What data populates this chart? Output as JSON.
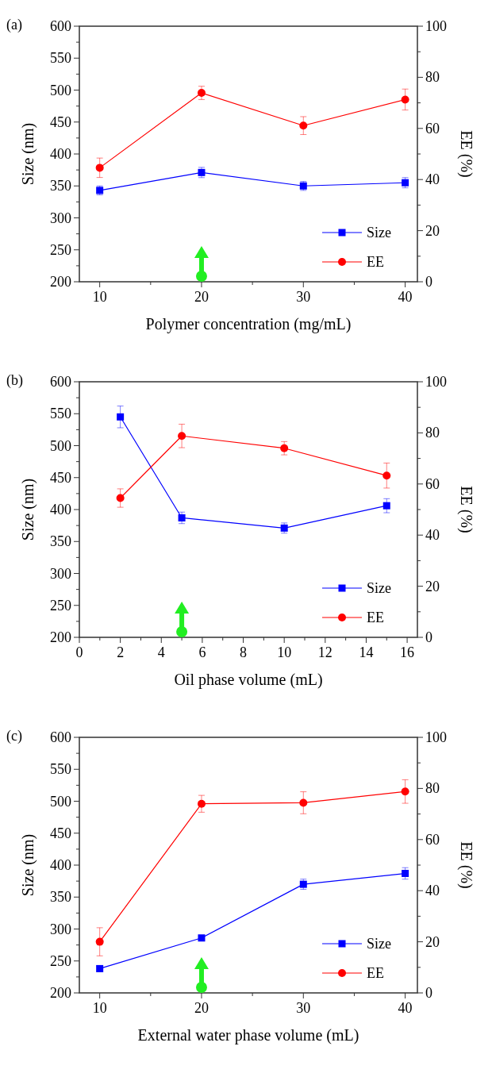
{
  "chart_data": [
    {
      "type": "line",
      "title": "(a)",
      "xlabel": "Polymer concentration (mg/mL)",
      "ylabel": "Size (nm)",
      "y2label": "EE (%)",
      "x": [
        10,
        20,
        30,
        40
      ],
      "xlim": [
        8,
        41.2
      ],
      "xticks": [
        10,
        {
          "value": 15,
          "label": null
        },
        20,
        {
          "value": 25,
          "label": null
        },
        30,
        {
          "value": 35,
          "label": null
        },
        40
      ],
      "ylim": [
        200,
        600
      ],
      "yticks": [
        200,
        {
          "value": 225,
          "label": null
        },
        250,
        {
          "value": 275,
          "label": null
        },
        300,
        {
          "value": 325,
          "label": null
        },
        350,
        {
          "value": 375,
          "label": null
        },
        400,
        {
          "value": 425,
          "label": null
        },
        450,
        {
          "value": 475,
          "label": null
        },
        500,
        {
          "value": 525,
          "label": null
        },
        550,
        {
          "value": 575,
          "label": null
        },
        600
      ],
      "y2lim": [
        0,
        100
      ],
      "y2ticks": [
        0,
        {
          "value": 10,
          "label": null
        },
        20,
        {
          "value": 30,
          "label": null
        },
        40,
        {
          "value": 50,
          "label": null
        },
        60,
        {
          "value": 70,
          "label": null
        },
        80,
        {
          "value": 90,
          "label": null
        },
        100
      ],
      "legend": "bottom right",
      "grid": false,
      "line_style": "solid",
      "series": [
        {
          "name": "Size",
          "color": "#0000ff",
          "marker": "square",
          "values": [
            343,
            371,
            350,
            355
          ],
          "errors": [
            7,
            8,
            7,
            8
          ]
        },
        {
          "name": "EE",
          "color": "#ff0000",
          "marker": "circle",
          "axis": "y2",
          "values": [
            44.6,
            73.9,
            61.1,
            71.3
          ],
          "errors": [
            3.8,
            2.6,
            3.5,
            4.1
          ]
        }
      ]
    },
    {
      "type": "line",
      "title": "(b)",
      "xlabel": "Oil phase volume (mL)",
      "ylabel": "Size (nm)",
      "y2label": "EE (%)",
      "x": [
        2,
        5,
        10,
        15
      ],
      "xlim": [
        0,
        16.5
      ],
      "xticks": [
        0,
        {
          "value": 1,
          "label": null
        },
        2,
        {
          "value": 3,
          "label": null
        },
        4,
        {
          "value": 5,
          "label": null
        },
        6,
        {
          "value": 7,
          "label": null
        },
        8,
        {
          "value": 9,
          "label": null
        },
        10,
        {
          "value": 11,
          "label": null
        },
        12,
        {
          "value": 13,
          "label": null
        },
        14,
        {
          "value": 15,
          "label": null
        },
        16
      ],
      "ylim": [
        200,
        600
      ],
      "yticks": [
        200,
        {
          "value": 225,
          "label": null
        },
        250,
        {
          "value": 275,
          "label": null
        },
        300,
        {
          "value": 325,
          "label": null
        },
        350,
        {
          "value": 375,
          "label": null
        },
        400,
        {
          "value": 425,
          "label": null
        },
        450,
        {
          "value": 475,
          "label": null
        },
        500,
        {
          "value": 525,
          "label": null
        },
        550,
        {
          "value": 575,
          "label": null
        },
        600
      ],
      "y2lim": [
        0,
        100
      ],
      "y2ticks": [
        0,
        {
          "value": 10,
          "label": null
        },
        20,
        {
          "value": 30,
          "label": null
        },
        40,
        {
          "value": 50,
          "label": null
        },
        60,
        {
          "value": 70,
          "label": null
        },
        80,
        {
          "value": 90,
          "label": null
        },
        100
      ],
      "legend": "bottom right",
      "grid": false,
      "line_style": "solid",
      "series": [
        {
          "name": "Size",
          "color": "#0000ff",
          "marker": "square",
          "values": [
            545,
            387,
            371,
            406
          ],
          "errors": [
            17,
            9,
            8,
            11
          ]
        },
        {
          "name": "EE",
          "color": "#ff0000",
          "marker": "circle",
          "axis": "y2",
          "values": [
            54.5,
            78.8,
            74,
            63.3
          ],
          "errors": [
            3.6,
            4.6,
            2.6,
            4.9
          ]
        }
      ]
    },
    {
      "type": "line",
      "title": "(c)",
      "xlabel": "External water phase volume (mL)",
      "ylabel": "Size (nm)",
      "y2label": "EE (%)",
      "x": [
        10,
        20,
        30,
        40
      ],
      "xlim": [
        8,
        41.2
      ],
      "xticks": [
        10,
        {
          "value": 15,
          "label": null
        },
        20,
        {
          "value": 25,
          "label": null
        },
        30,
        {
          "value": 35,
          "label": null
        },
        40
      ],
      "ylim": [
        200,
        600
      ],
      "yticks": [
        200,
        {
          "value": 225,
          "label": null
        },
        250,
        {
          "value": 275,
          "label": null
        },
        300,
        {
          "value": 325,
          "label": null
        },
        350,
        {
          "value": 375,
          "label": null
        },
        400,
        {
          "value": 425,
          "label": null
        },
        450,
        {
          "value": 475,
          "label": null
        },
        500,
        {
          "value": 525,
          "label": null
        },
        550,
        {
          "value": 575,
          "label": null
        },
        600
      ],
      "y2lim": [
        0,
        100
      ],
      "y2ticks": [
        0,
        {
          "value": 10,
          "label": null
        },
        20,
        {
          "value": 30,
          "label": null
        },
        40,
        {
          "value": 50,
          "label": null
        },
        60,
        {
          "value": 70,
          "label": null
        },
        80,
        {
          "value": 90,
          "label": null
        },
        100
      ],
      "legend": "bottom right",
      "grid": false,
      "line_style": "solid",
      "series": [
        {
          "name": "Size",
          "color": "#0000ff",
          "marker": "square",
          "values": [
            238,
            286,
            370,
            387
          ],
          "errors": [
            4,
            3,
            8,
            9
          ]
        },
        {
          "name": "EE",
          "color": "#ff0000",
          "marker": "circle",
          "axis": "y2",
          "values": [
            20,
            74,
            74.4,
            78.8
          ],
          "errors": [
            5.5,
            3.3,
            4.3,
            4.6
          ]
        }
      ]
    }
  ]
}
